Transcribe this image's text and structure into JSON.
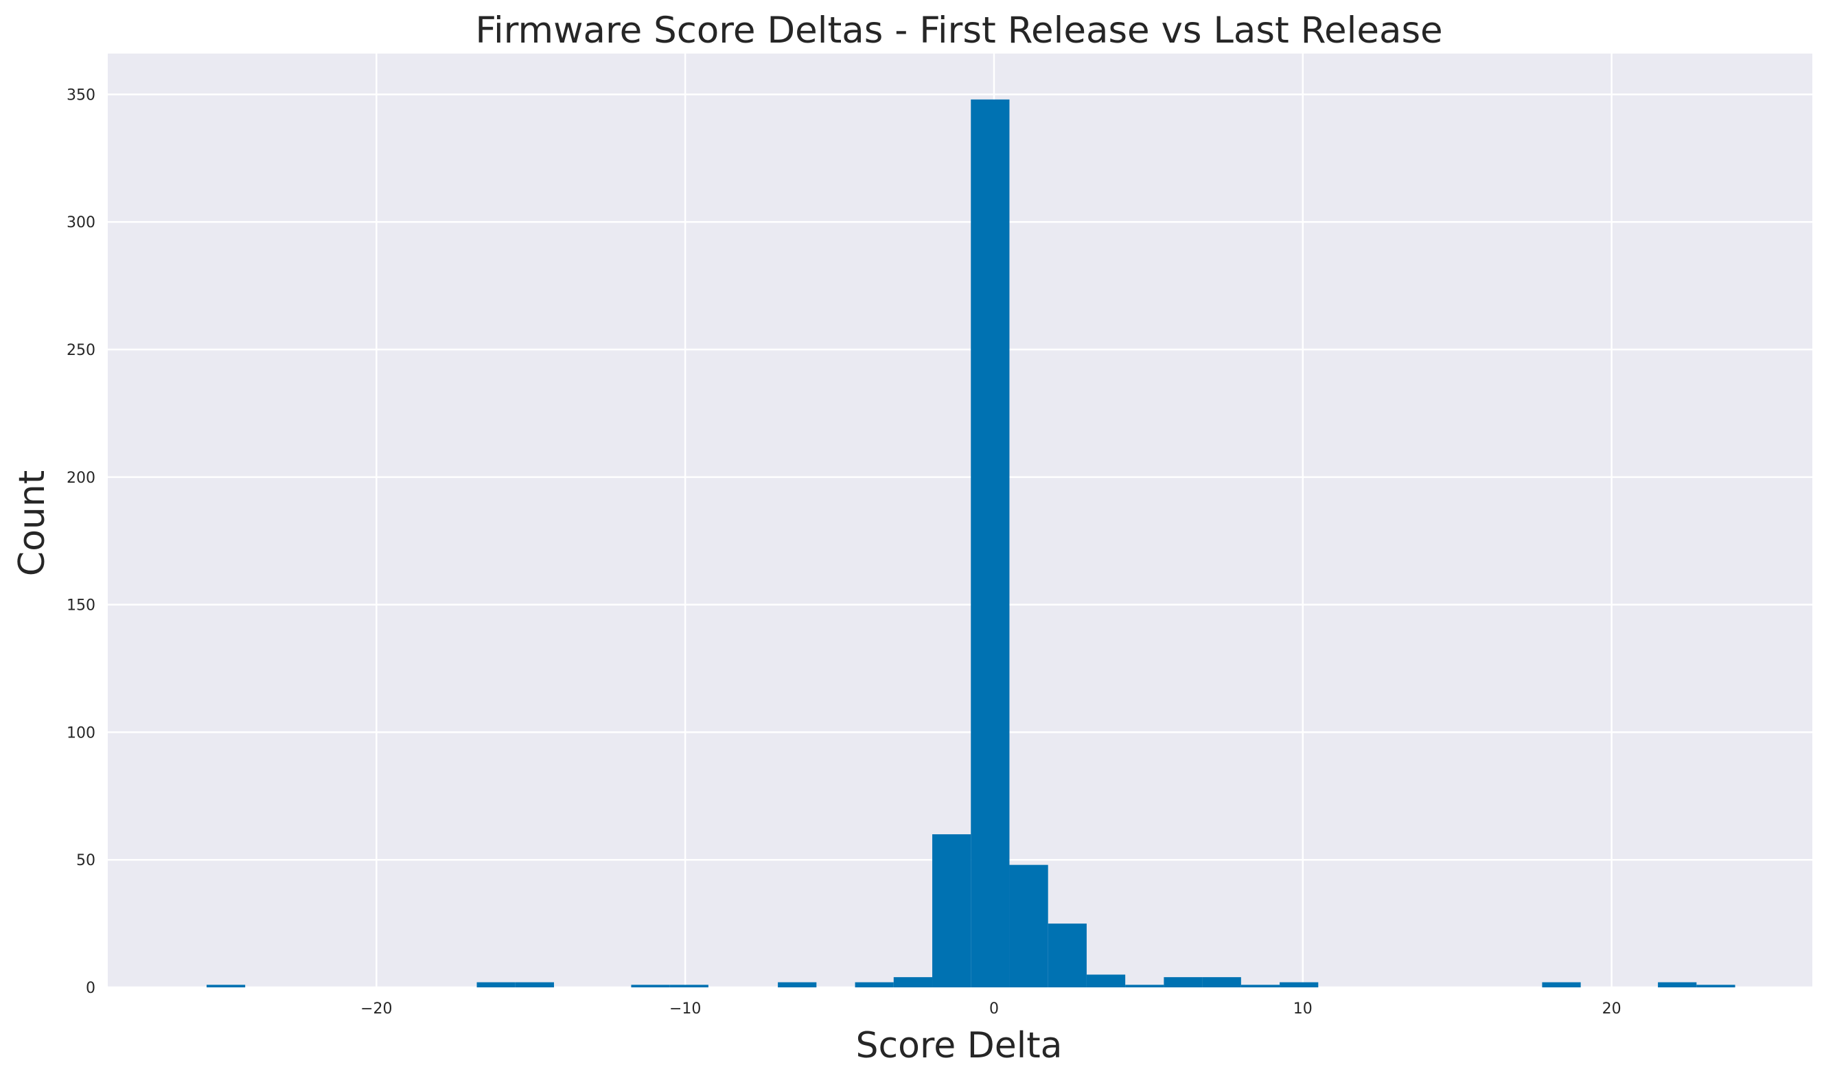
{
  "chart_data": {
    "type": "bar",
    "title": "Firmware Score Deltas - First Release vs Last Release",
    "xlabel": "Score Delta",
    "ylabel": "Count",
    "xlim": [
      -28.7,
      26.5
    ],
    "ylim": [
      0,
      366
    ],
    "grid": true,
    "x_ticks": [
      -20,
      -10,
      0,
      10,
      20
    ],
    "x_tick_labels": [
      "−20",
      "−10",
      "0",
      "10",
      "20"
    ],
    "y_ticks": [
      0,
      50,
      100,
      150,
      200,
      250,
      300,
      350
    ],
    "y_tick_labels": [
      "0",
      "50",
      "100",
      "150",
      "200",
      "250",
      "300",
      "350"
    ],
    "bar_color": "#0072b2",
    "background_color": "#eaeaf2",
    "grid_color": "#ffffff",
    "bins": [
      {
        "x0": -25.5,
        "x1": -24.25,
        "count": 1
      },
      {
        "x0": -16.75,
        "x1": -15.5,
        "count": 2
      },
      {
        "x0": -15.5,
        "x1": -14.25,
        "count": 2
      },
      {
        "x0": -11.75,
        "x1": -10.5,
        "count": 1
      },
      {
        "x0": -10.5,
        "x1": -9.25,
        "count": 1
      },
      {
        "x0": -7.0,
        "x1": -5.75,
        "count": 2
      },
      {
        "x0": -4.5,
        "x1": -3.25,
        "count": 2
      },
      {
        "x0": -3.25,
        "x1": -2.0,
        "count": 4
      },
      {
        "x0": -2.0,
        "x1": -0.75,
        "count": 60
      },
      {
        "x0": -0.75,
        "x1": 0.5,
        "count": 348
      },
      {
        "x0": 0.5,
        "x1": 1.75,
        "count": 48
      },
      {
        "x0": 1.75,
        "x1": 3.0,
        "count": 25
      },
      {
        "x0": 3.0,
        "x1": 4.25,
        "count": 5
      },
      {
        "x0": 4.25,
        "x1": 5.5,
        "count": 1
      },
      {
        "x0": 5.5,
        "x1": 6.75,
        "count": 4
      },
      {
        "x0": 6.75,
        "x1": 8.0,
        "count": 4
      },
      {
        "x0": 8.0,
        "x1": 9.25,
        "count": 1
      },
      {
        "x0": 9.25,
        "x1": 10.5,
        "count": 2
      },
      {
        "x0": 17.75,
        "x1": 19.0,
        "count": 2
      },
      {
        "x0": 21.5,
        "x1": 22.75,
        "count": 2
      },
      {
        "x0": 22.75,
        "x1": 24.0,
        "count": 1
      }
    ]
  }
}
